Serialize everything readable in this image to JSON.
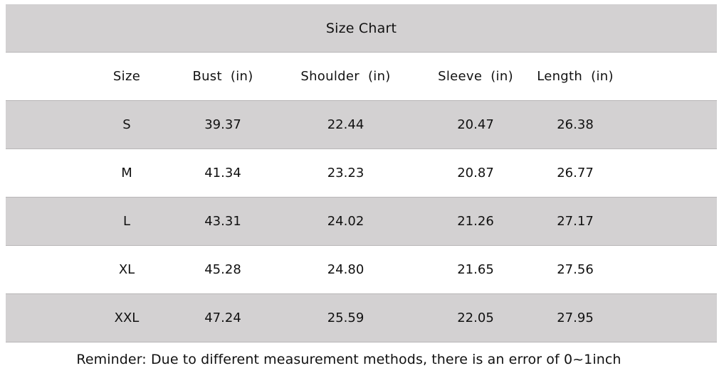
{
  "title": "Size Chart",
  "columns": [
    "Size",
    "Bust  (in)",
    "Shoulder  (in)",
    "Sleeve  (in)",
    "Length  (in)"
  ],
  "rows": [
    [
      "S",
      "39.37",
      "22.44",
      "20.47",
      "26.38"
    ],
    [
      "M",
      "41.34",
      "23.23",
      "20.87",
      "26.77"
    ],
    [
      "L",
      "43.31",
      "24.02",
      "21.26",
      "27.17"
    ],
    [
      "XL",
      "45.28",
      "24.80",
      "21.65",
      "27.56"
    ],
    [
      "XXL",
      "47.24",
      "25.59",
      "22.05",
      "27.95"
    ]
  ],
  "reminder": "Reminder: Due to different measurement methods, there is an error of 0~1inch",
  "colors": {
    "shade": "#d3d1d2",
    "plain": "#ffffff"
  }
}
